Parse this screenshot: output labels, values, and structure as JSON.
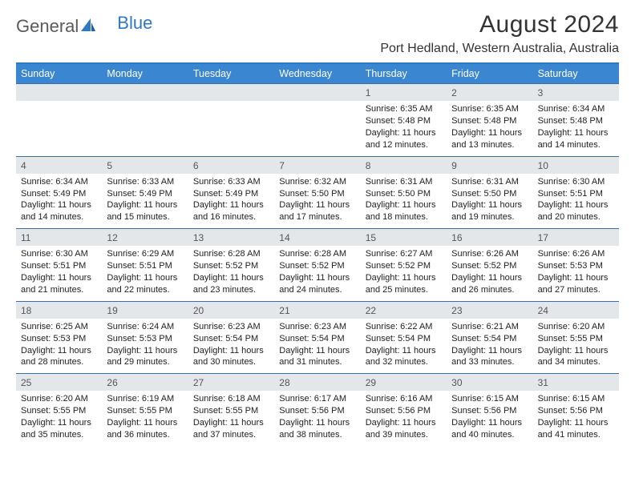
{
  "brand": {
    "part1": "General",
    "part2": "Blue"
  },
  "title": {
    "month": "August 2024",
    "location": "Port Hedland, Western Australia, Australia"
  },
  "colors": {
    "header_bg": "#3a86d1",
    "header_text": "#ffffff",
    "rule": "#3a6ea5",
    "daynum_bg": "#e4e7ea",
    "brand_accent": "#2f78c4"
  },
  "dayNames": [
    "Sunday",
    "Monday",
    "Tuesday",
    "Wednesday",
    "Thursday",
    "Friday",
    "Saturday"
  ],
  "sunrise_prefix": "Sunrise: ",
  "sunset_prefix": "Sunset: ",
  "daylight_prefix": "Daylight: ",
  "weeks": [
    [
      {
        "n": "",
        "sr": "",
        "ss": "",
        "dl": ""
      },
      {
        "n": "",
        "sr": "",
        "ss": "",
        "dl": ""
      },
      {
        "n": "",
        "sr": "",
        "ss": "",
        "dl": ""
      },
      {
        "n": "",
        "sr": "",
        "ss": "",
        "dl": ""
      },
      {
        "n": "1",
        "sr": "6:35 AM",
        "ss": "5:48 PM",
        "dl": "11 hours and 12 minutes."
      },
      {
        "n": "2",
        "sr": "6:35 AM",
        "ss": "5:48 PM",
        "dl": "11 hours and 13 minutes."
      },
      {
        "n": "3",
        "sr": "6:34 AM",
        "ss": "5:48 PM",
        "dl": "11 hours and 14 minutes."
      }
    ],
    [
      {
        "n": "4",
        "sr": "6:34 AM",
        "ss": "5:49 PM",
        "dl": "11 hours and 14 minutes."
      },
      {
        "n": "5",
        "sr": "6:33 AM",
        "ss": "5:49 PM",
        "dl": "11 hours and 15 minutes."
      },
      {
        "n": "6",
        "sr": "6:33 AM",
        "ss": "5:49 PM",
        "dl": "11 hours and 16 minutes."
      },
      {
        "n": "7",
        "sr": "6:32 AM",
        "ss": "5:50 PM",
        "dl": "11 hours and 17 minutes."
      },
      {
        "n": "8",
        "sr": "6:31 AM",
        "ss": "5:50 PM",
        "dl": "11 hours and 18 minutes."
      },
      {
        "n": "9",
        "sr": "6:31 AM",
        "ss": "5:50 PM",
        "dl": "11 hours and 19 minutes."
      },
      {
        "n": "10",
        "sr": "6:30 AM",
        "ss": "5:51 PM",
        "dl": "11 hours and 20 minutes."
      }
    ],
    [
      {
        "n": "11",
        "sr": "6:30 AM",
        "ss": "5:51 PM",
        "dl": "11 hours and 21 minutes."
      },
      {
        "n": "12",
        "sr": "6:29 AM",
        "ss": "5:51 PM",
        "dl": "11 hours and 22 minutes."
      },
      {
        "n": "13",
        "sr": "6:28 AM",
        "ss": "5:52 PM",
        "dl": "11 hours and 23 minutes."
      },
      {
        "n": "14",
        "sr": "6:28 AM",
        "ss": "5:52 PM",
        "dl": "11 hours and 24 minutes."
      },
      {
        "n": "15",
        "sr": "6:27 AM",
        "ss": "5:52 PM",
        "dl": "11 hours and 25 minutes."
      },
      {
        "n": "16",
        "sr": "6:26 AM",
        "ss": "5:52 PM",
        "dl": "11 hours and 26 minutes."
      },
      {
        "n": "17",
        "sr": "6:26 AM",
        "ss": "5:53 PM",
        "dl": "11 hours and 27 minutes."
      }
    ],
    [
      {
        "n": "18",
        "sr": "6:25 AM",
        "ss": "5:53 PM",
        "dl": "11 hours and 28 minutes."
      },
      {
        "n": "19",
        "sr": "6:24 AM",
        "ss": "5:53 PM",
        "dl": "11 hours and 29 minutes."
      },
      {
        "n": "20",
        "sr": "6:23 AM",
        "ss": "5:54 PM",
        "dl": "11 hours and 30 minutes."
      },
      {
        "n": "21",
        "sr": "6:23 AM",
        "ss": "5:54 PM",
        "dl": "11 hours and 31 minutes."
      },
      {
        "n": "22",
        "sr": "6:22 AM",
        "ss": "5:54 PM",
        "dl": "11 hours and 32 minutes."
      },
      {
        "n": "23",
        "sr": "6:21 AM",
        "ss": "5:54 PM",
        "dl": "11 hours and 33 minutes."
      },
      {
        "n": "24",
        "sr": "6:20 AM",
        "ss": "5:55 PM",
        "dl": "11 hours and 34 minutes."
      }
    ],
    [
      {
        "n": "25",
        "sr": "6:20 AM",
        "ss": "5:55 PM",
        "dl": "11 hours and 35 minutes."
      },
      {
        "n": "26",
        "sr": "6:19 AM",
        "ss": "5:55 PM",
        "dl": "11 hours and 36 minutes."
      },
      {
        "n": "27",
        "sr": "6:18 AM",
        "ss": "5:55 PM",
        "dl": "11 hours and 37 minutes."
      },
      {
        "n": "28",
        "sr": "6:17 AM",
        "ss": "5:56 PM",
        "dl": "11 hours and 38 minutes."
      },
      {
        "n": "29",
        "sr": "6:16 AM",
        "ss": "5:56 PM",
        "dl": "11 hours and 39 minutes."
      },
      {
        "n": "30",
        "sr": "6:15 AM",
        "ss": "5:56 PM",
        "dl": "11 hours and 40 minutes."
      },
      {
        "n": "31",
        "sr": "6:15 AM",
        "ss": "5:56 PM",
        "dl": "11 hours and 41 minutes."
      }
    ]
  ]
}
